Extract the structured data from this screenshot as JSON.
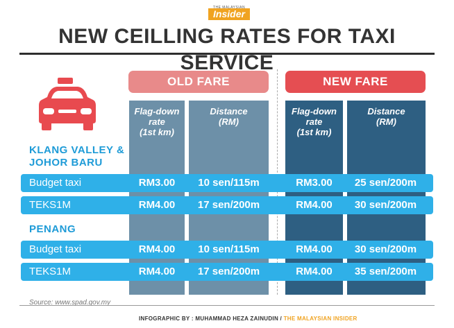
{
  "logo": {
    "top": "THE MALAYSIAN",
    "main": "Insider"
  },
  "title": "NEW CEILLING RATES FOR TAXI SERVICE",
  "bands": {
    "old": "OLD FARE",
    "new": "NEW FARE"
  },
  "headers": {
    "old_flag": "Flag-down\nrate\n(1st km)",
    "old_distance": "Distance\n(RM)",
    "new_flag": "Flag-down\nrate\n(1st km)",
    "new_distance": "Distance\n(RM)"
  },
  "regions": [
    {
      "name_line1": "KLANG VALLEY &",
      "name_line2": "JOHOR BARU",
      "rows": [
        {
          "label": "Budget taxi",
          "old_flag": "RM3.00",
          "old_distance": "10 sen/115m",
          "new_flag": "RM3.00",
          "new_distance": "25 sen/200m"
        },
        {
          "label": "TEKS1M",
          "old_flag": "RM4.00",
          "old_distance": "17 sen/200m",
          "new_flag": "RM4.00",
          "new_distance": "30 sen/200m"
        }
      ]
    },
    {
      "name_line1": "PENANG",
      "name_line2": "",
      "rows": [
        {
          "label": "Budget taxi",
          "old_flag": "RM4.00",
          "old_distance": "10 sen/115m",
          "new_flag": "RM4.00",
          "new_distance": "30 sen/200m"
        },
        {
          "label": "TEKS1M",
          "old_flag": "RM4.00",
          "old_distance": "17 sen/200m",
          "new_flag": "RM4.00",
          "new_distance": "35 sen/200m"
        }
      ]
    }
  ],
  "source": "Source: www.spad.gov.my",
  "credit": {
    "prefix": "INFOGRAPHIC BY : MUHAMMAD HEZA ZAINUDIN / ",
    "publisher": "THE MALAYSIAN INSIDER"
  },
  "colors": {
    "taxi": "#e84a4f",
    "row": "#2fb0e8",
    "old_col": "#6d90a8",
    "new_col": "#2e5f82",
    "region": "#1e9bd7"
  }
}
